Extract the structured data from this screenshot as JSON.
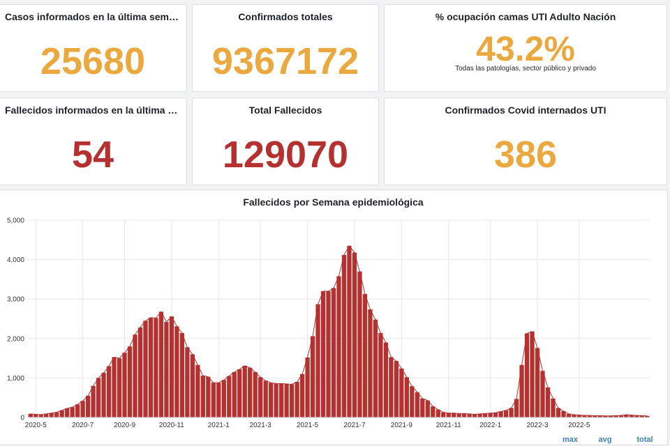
{
  "stats": {
    "cases_week": {
      "title": "Casos informados en la última semana",
      "value": "25680",
      "color": "#eba83f"
    },
    "confirmed_total": {
      "title": "Confirmados totales",
      "value": "9367172",
      "color": "#eba83f"
    },
    "uti_occupancy": {
      "title": "% ocupación camas UTI Adulto Nación",
      "value": "43.2%",
      "subtitle": "Todas las patologías, sector público y privado",
      "color": "#eba83f"
    },
    "deaths_week": {
      "title": "Fallecidos informados en la última se...",
      "value": "54",
      "color": "#b5312f"
    },
    "deaths_total": {
      "title": "Total Fallecidos",
      "value": "129070",
      "color": "#b5312f"
    },
    "uti_covid": {
      "title": "Confirmados Covid internados UTI",
      "value": "386",
      "color": "#eba83f"
    }
  },
  "chart_data": {
    "type": "bar",
    "title": "Fallecidos por Semana epidemiológica",
    "xlabel": "",
    "ylabel": "",
    "ylim": [
      0,
      5000
    ],
    "y_ticks": [
      "0",
      "1,000",
      "2,000",
      "3,000",
      "4,000",
      "5,000"
    ],
    "x_ticks": [
      "2020-5",
      "2020-7",
      "2020-9",
      "2020-11",
      "2021-1",
      "2021-3",
      "2021-5",
      "2021-7",
      "2021-9",
      "2021-11",
      "2022-1",
      "2022-3",
      "2022-5"
    ],
    "x_tick_weeks": [
      1,
      10,
      18,
      27,
      36,
      44,
      53,
      62,
      71,
      80,
      88,
      97,
      105
    ],
    "grid": true,
    "bar_color": "#b5312f",
    "line_color": "#b5312f",
    "values": [
      90,
      80,
      70,
      90,
      110,
      130,
      180,
      230,
      260,
      330,
      420,
      550,
      800,
      1000,
      1130,
      1300,
      1530,
      1500,
      1640,
      1800,
      2100,
      2280,
      2450,
      2530,
      2520,
      2680,
      2420,
      2560,
      2310,
      2140,
      1780,
      1600,
      1330,
      1060,
      1030,
      880,
      880,
      950,
      1050,
      1150,
      1220,
      1310,
      1260,
      1150,
      1020,
      930,
      880,
      860,
      860,
      850,
      840,
      900,
      1100,
      1520,
      2060,
      2870,
      3200,
      3200,
      3280,
      3580,
      4120,
      4350,
      4180,
      3700,
      3130,
      2740,
      2480,
      2140,
      1900,
      1530,
      1430,
      1240,
      1020,
      790,
      640,
      480,
      430,
      280,
      200,
      130,
      110,
      110,
      100,
      100,
      90,
      80,
      90,
      100,
      110,
      120,
      150,
      180,
      240,
      470,
      1330,
      2130,
      2180,
      1760,
      1180,
      760,
      480,
      240,
      160,
      90,
      70,
      60,
      50,
      50,
      45,
      45,
      40,
      40,
      45,
      50,
      70,
      60,
      50,
      45,
      40
    ],
    "footer_links": [
      "max",
      "avg",
      "total"
    ]
  }
}
